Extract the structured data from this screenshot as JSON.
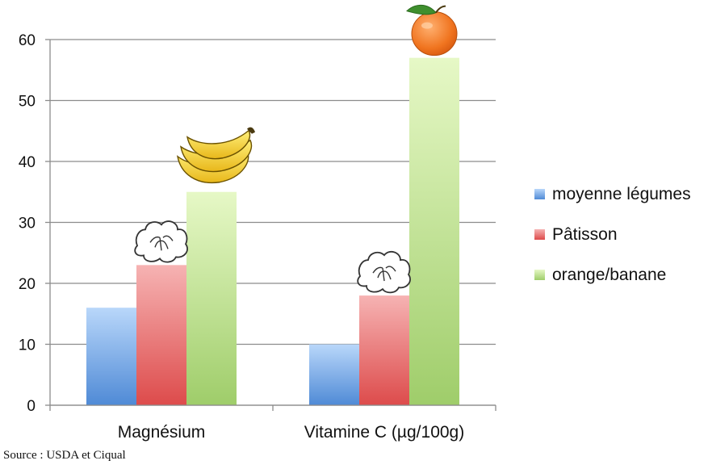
{
  "chart_data": {
    "type": "bar",
    "categories": [
      "Magnésium",
      "Vitamine C (µg/100g)"
    ],
    "series": [
      {
        "name": "moyenne légumes",
        "values": [
          16,
          10
        ]
      },
      {
        "name": "Pâtisson",
        "values": [
          23,
          18
        ]
      },
      {
        "name": "orange/banane",
        "values": [
          35,
          57
        ]
      }
    ],
    "ylim": [
      0,
      60
    ],
    "yticks": [
      0,
      10,
      20,
      30,
      40,
      50,
      60
    ],
    "grid": true,
    "legend": "right",
    "colors": [
      "#6fa8e6",
      "#e96a6a",
      "#b3dc84"
    ],
    "icons": [
      "pattypan-squash-icon",
      "banana-icon",
      "orange-icon"
    ]
  },
  "source": "Source : USDA et Ciqual"
}
